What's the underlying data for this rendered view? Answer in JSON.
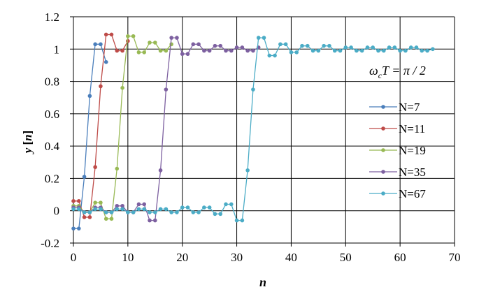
{
  "chart_data": {
    "type": "line",
    "xlabel": "n",
    "ylabel": "y [n]",
    "annotation": {
      "prefix": "ω",
      "subscript": "c",
      "rest": "T = π / 2"
    },
    "xlim": [
      0,
      70
    ],
    "ylim": [
      -0.2,
      1.2
    ],
    "xticks": [
      0,
      10,
      20,
      30,
      40,
      50,
      60,
      70
    ],
    "yticks": [
      -0.2,
      0,
      0.2,
      0.4,
      0.6,
      0.8,
      1,
      1.2
    ],
    "ytick_labels": [
      "-0.2",
      "0",
      "0.2",
      "0.4",
      "0.6",
      "0.8",
      "1",
      "1.2"
    ],
    "grid": true,
    "legend_position": "right",
    "series": [
      {
        "name": "N=7",
        "color": "#4a7ebb",
        "x": [
          0,
          1,
          2,
          3,
          4,
          5,
          6
        ],
        "y": [
          -0.11,
          -0.11,
          0.21,
          0.71,
          1.03,
          1.03,
          0.92
        ]
      },
      {
        "name": "N=11",
        "color": "#be4b48",
        "x": [
          0,
          1,
          2,
          3,
          4,
          5,
          6,
          7,
          8,
          9,
          10
        ],
        "y": [
          0.06,
          0.06,
          -0.04,
          -0.04,
          0.27,
          0.77,
          1.09,
          1.09,
          0.99,
          0.99,
          1.05
        ]
      },
      {
        "name": "N=19",
        "color": "#98b954",
        "x": [
          0,
          1,
          2,
          3,
          4,
          5,
          6,
          7,
          8,
          9,
          10,
          11,
          12,
          13,
          14,
          15,
          16,
          17,
          18
        ],
        "y": [
          0.03,
          0.03,
          -0.01,
          -0.01,
          0.05,
          0.05,
          -0.05,
          -0.05,
          0.26,
          0.76,
          1.08,
          1.08,
          0.98,
          0.98,
          1.04,
          1.04,
          0.99,
          0.99,
          1.03
        ]
      },
      {
        "name": "N=35",
        "color": "#7d60a0",
        "x": [
          0,
          1,
          2,
          3,
          4,
          5,
          6,
          7,
          8,
          9,
          10,
          11,
          12,
          13,
          14,
          15,
          16,
          17,
          18,
          19,
          20,
          21,
          22,
          23,
          24,
          25,
          26,
          27,
          28,
          29,
          30,
          31,
          32,
          33,
          34
        ],
        "y": [
          0.02,
          0.02,
          -0.01,
          -0.01,
          0.02,
          0.02,
          -0.01,
          -0.01,
          0.03,
          0.03,
          -0.01,
          -0.01,
          0.04,
          0.04,
          -0.06,
          -0.06,
          0.25,
          0.75,
          1.07,
          1.07,
          0.97,
          0.97,
          1.03,
          1.03,
          0.99,
          0.99,
          1.02,
          1.02,
          0.99,
          0.99,
          1.01,
          1.01,
          0.99,
          0.99,
          1.01
        ]
      },
      {
        "name": "N=67",
        "color": "#4bacc6",
        "x": [
          0,
          1,
          2,
          3,
          4,
          5,
          6,
          7,
          8,
          9,
          10,
          11,
          12,
          13,
          14,
          15,
          16,
          17,
          18,
          19,
          20,
          21,
          22,
          23,
          24,
          25,
          26,
          27,
          28,
          29,
          30,
          31,
          32,
          33,
          34,
          35,
          36,
          37,
          38,
          39,
          40,
          41,
          42,
          43,
          44,
          45,
          46,
          47,
          48,
          49,
          50,
          51,
          52,
          53,
          54,
          55,
          56,
          57,
          58,
          59,
          60,
          61,
          62,
          63,
          64,
          65,
          66
        ],
        "y": [
          0.01,
          0.01,
          -0.01,
          -0.01,
          0.01,
          0.01,
          -0.01,
          -0.01,
          0.01,
          0.01,
          -0.01,
          -0.01,
          0.01,
          0.01,
          -0.01,
          -0.01,
          0.01,
          0.01,
          -0.01,
          -0.01,
          0.02,
          0.02,
          -0.01,
          -0.01,
          0.02,
          0.02,
          -0.02,
          -0.02,
          0.04,
          0.04,
          -0.06,
          -0.06,
          0.25,
          0.75,
          1.07,
          1.07,
          0.96,
          0.96,
          1.03,
          1.03,
          0.98,
          0.98,
          1.02,
          1.02,
          0.99,
          0.99,
          1.02,
          1.02,
          0.99,
          0.99,
          1.01,
          1.01,
          0.99,
          0.99,
          1.01,
          1.01,
          0.99,
          0.99,
          1.01,
          1.01,
          0.99,
          0.99,
          1.01,
          1.01,
          0.99,
          0.99,
          1.0
        ]
      }
    ]
  }
}
